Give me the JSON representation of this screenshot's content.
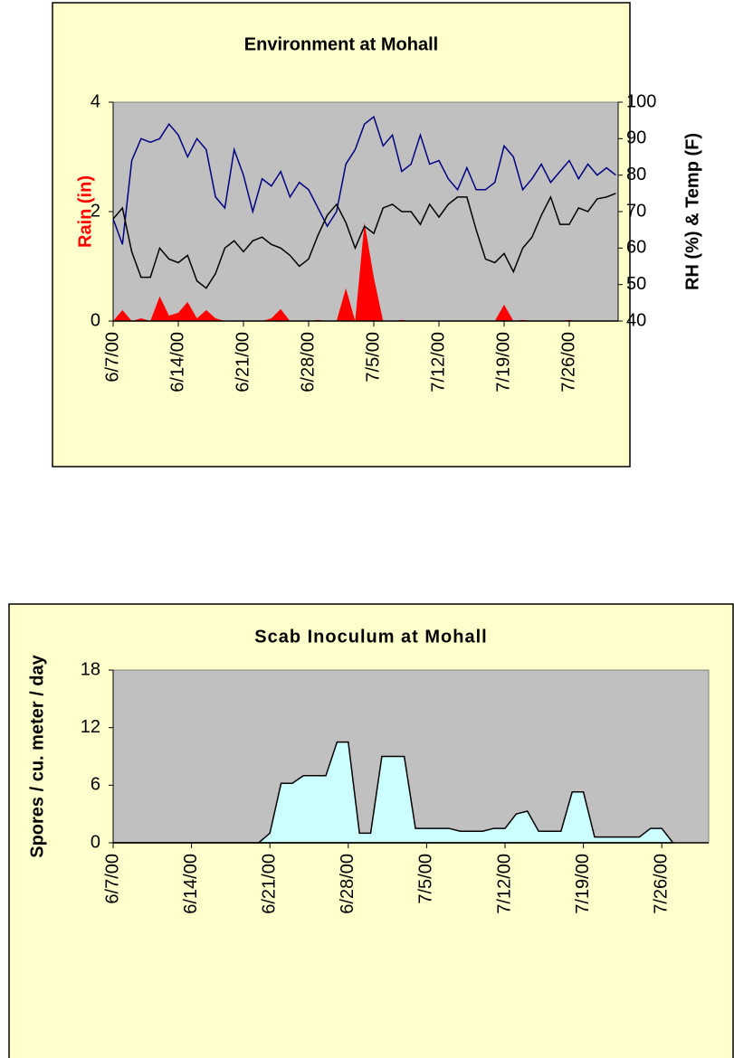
{
  "chart_data": [
    {
      "type": "combo",
      "title": "Environment at Mohall",
      "y_label": "Rain (in)",
      "y2_label": "RH (%) & Temp (F)",
      "categories": [
        "6/7/00",
        null,
        null,
        null,
        null,
        null,
        null,
        "6/14/00",
        null,
        null,
        null,
        null,
        null,
        null,
        "6/21/00",
        null,
        null,
        null,
        null,
        null,
        null,
        "6/28/00",
        null,
        null,
        null,
        null,
        null,
        null,
        "7/5/00",
        null,
        null,
        null,
        null,
        null,
        null,
        "7/12/00",
        null,
        null,
        null,
        null,
        null,
        null,
        "7/19/00",
        null,
        null,
        null,
        null,
        null,
        null,
        "7/26/00",
        null,
        null,
        null,
        null,
        null
      ],
      "ylim": [
        0,
        4
      ],
      "yticks": [
        0,
        2,
        4
      ],
      "y2lim": [
        40,
        100
      ],
      "y2ticks": [
        40,
        50,
        60,
        70,
        80,
        90,
        100
      ],
      "series": [
        {
          "type": "area",
          "color": "#ff0000",
          "values": [
            0,
            0.2,
            0,
            0.05,
            0,
            0.45,
            0.1,
            0.15,
            0.35,
            0.05,
            0.2,
            0.05,
            0,
            0,
            0,
            0,
            0,
            0.05,
            0.22,
            0,
            0,
            0,
            0.02,
            0,
            0,
            0.6,
            0,
            1.8,
            0.8,
            0,
            0,
            0.02,
            0,
            0,
            0,
            0,
            0,
            0,
            0,
            0,
            0,
            0,
            0.3,
            0,
            0.02,
            0,
            0,
            0,
            0,
            0.02,
            0,
            0,
            0,
            0,
            0
          ]
        },
        {
          "type": "line",
          "axis": "y2",
          "color": "#000080",
          "values": [
            68,
            61,
            84,
            90,
            89,
            90,
            94,
            91,
            85,
            90,
            87,
            74,
            71,
            87,
            80,
            70,
            79,
            77,
            81,
            74,
            78,
            76,
            71,
            66,
            70,
            83,
            87,
            94,
            96,
            88,
            91,
            81,
            83,
            91,
            83,
            84,
            79,
            76,
            82,
            76,
            76,
            78,
            88,
            85,
            76,
            79,
            83,
            78,
            81,
            84,
            79,
            83,
            80,
            82,
            80
          ]
        },
        {
          "type": "line",
          "axis": "y2",
          "color": "#000000",
          "values": [
            68,
            71,
            59,
            52,
            52,
            60,
            57,
            56,
            58,
            51,
            49,
            53,
            60,
            62,
            59,
            62,
            63,
            61,
            60,
            58,
            55,
            57,
            63.5,
            69,
            72,
            67,
            60,
            66,
            64,
            71,
            72,
            70,
            70,
            66.5,
            72,
            68.5,
            72,
            74,
            74,
            65,
            57,
            56,
            58.5,
            53.5,
            60,
            63,
            69,
            74,
            66.5,
            66.5,
            71,
            70,
            73.5,
            74,
            75
          ]
        }
      ]
    },
    {
      "type": "area",
      "title": "Scab Inoculum at Mohall",
      "y_label": "Spores / cu. meter / day",
      "categories": [
        "6/7/00",
        null,
        null,
        null,
        null,
        null,
        null,
        "6/14/00",
        null,
        null,
        null,
        null,
        null,
        null,
        "6/21/00",
        null,
        null,
        null,
        null,
        null,
        null,
        "6/28/00",
        null,
        null,
        null,
        null,
        null,
        null,
        "7/5/00",
        null,
        null,
        null,
        null,
        null,
        null,
        "7/12/00",
        null,
        null,
        null,
        null,
        null,
        null,
        "7/19/00",
        null,
        null,
        null,
        null,
        null,
        null,
        "7/26/00",
        null,
        null,
        null,
        null
      ],
      "ylim": [
        0,
        18
      ],
      "yticks": [
        0,
        6,
        12,
        18
      ],
      "series": [
        {
          "color": "#ccffff",
          "values": [
            0,
            0,
            0,
            0,
            0,
            0,
            0,
            0,
            0,
            0,
            0,
            0,
            0,
            0,
            1,
            6.2,
            6.2,
            7,
            7,
            7,
            10.5,
            10.5,
            1,
            1,
            9,
            9,
            9,
            1.5,
            1.5,
            1.5,
            1.5,
            1.2,
            1.2,
            1.2,
            1.5,
            1.5,
            3,
            3.3,
            1.2,
            1.2,
            1.2,
            5.3,
            5.3,
            0.6,
            0.6,
            0.6,
            0.6,
            0.6,
            1.5,
            1.5,
            0,
            null,
            null,
            null
          ]
        }
      ]
    }
  ]
}
